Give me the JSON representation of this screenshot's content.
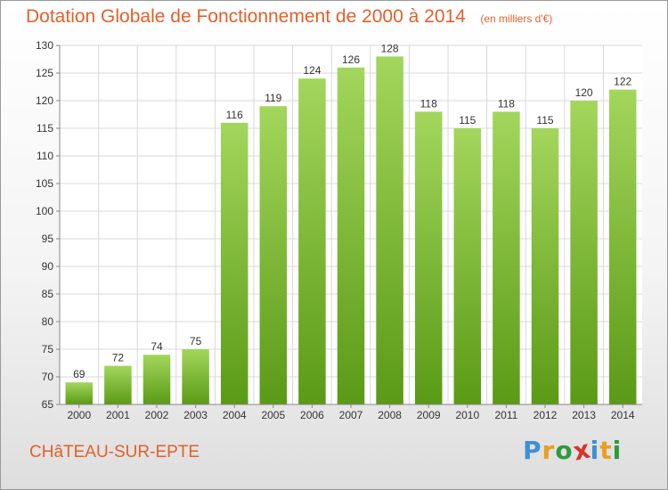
{
  "chart_data": {
    "type": "bar",
    "title": "Dotation Globale de Fonctionnement de 2000 à 2014",
    "subtitle": "(en milliers d'€)",
    "xlabel": "",
    "ylabel": "",
    "categories": [
      "2000",
      "2001",
      "2002",
      "2003",
      "2004",
      "2005",
      "2006",
      "2007",
      "2008",
      "2009",
      "2010",
      "2011",
      "2012",
      "2013",
      "2014"
    ],
    "values": [
      69,
      72,
      74,
      75,
      116,
      119,
      124,
      126,
      128,
      118,
      115,
      118,
      115,
      120,
      122
    ],
    "ylim": [
      65,
      130
    ],
    "yticks": [
      65,
      70,
      75,
      80,
      85,
      90,
      95,
      100,
      105,
      110,
      115,
      120,
      125,
      130
    ],
    "grid": true,
    "bar_color_top": "#a3d65c",
    "bar_color_bottom": "#5a9a16"
  },
  "footer": {
    "commune": "CHâTEAU-SUR-EPTE",
    "brand": [
      "P",
      "r",
      "o",
      "x",
      "i",
      "t",
      "i"
    ],
    "brand_colors": [
      "#3d8fd6",
      "#e8a020",
      "#2e9a3e",
      "#d8322b",
      "#3d8fd6",
      "#e8a020",
      "#2e9a3e"
    ]
  },
  "colors": {
    "title": "#e45f2a",
    "axis_text": "#333333",
    "grid": "#d8d8d8"
  }
}
